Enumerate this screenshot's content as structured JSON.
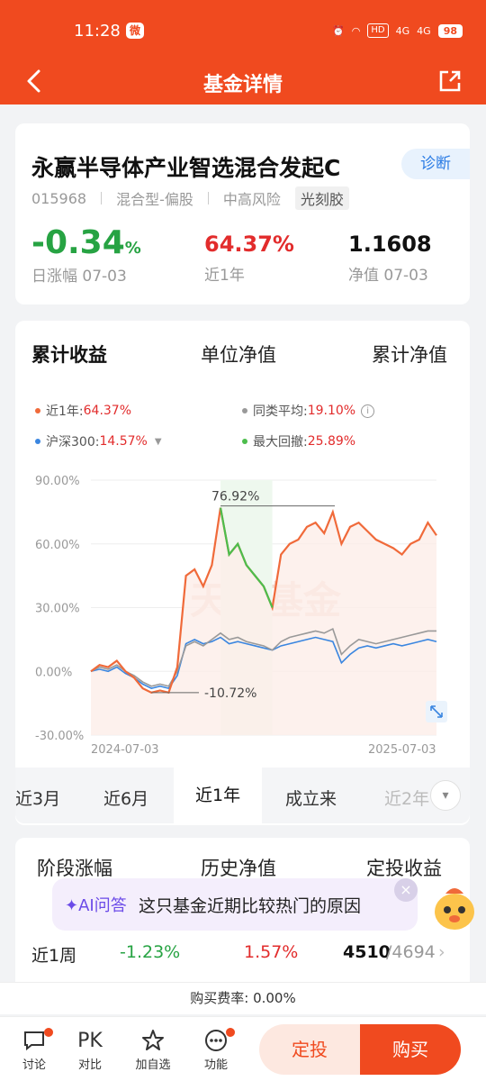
{
  "status": {
    "time": "11:28",
    "battery": "98",
    "hd": "HD",
    "net1": "4G",
    "net2": "4G"
  },
  "nav": {
    "title": "基金详情"
  },
  "fund": {
    "name": "永赢半导体产业智选混合发起C",
    "diagnose": "诊断",
    "code": "015968",
    "type": "混合型-偏股",
    "risk": "中高风险",
    "tag": "光刻胶",
    "daily_value": "-0.34",
    "daily_unit": "%",
    "daily_label": "日涨幅 07-03",
    "year_value": "64.37%",
    "year_label": "近1年",
    "nav_value": "1.1608",
    "nav_label": "净值 07-03"
  },
  "chart_tabs": [
    "累计收益",
    "单位净值",
    "累计净值"
  ],
  "legend": {
    "fund_label": "近1年:",
    "fund_value": "64.37%",
    "peer_label": "同类平均:",
    "peer_value": "19.10%",
    "index_label": "沪深300:",
    "index_value": "14.57%",
    "dd_label": "最大回撤:",
    "dd_value": "25.89%"
  },
  "chart_data": {
    "type": "line",
    "y_ticks": [
      "90.00%",
      "60.00%",
      "30.00%",
      "0.00%",
      "-30.00%"
    ],
    "ylim": [
      -30,
      90
    ],
    "x_start": "2024-07-03",
    "x_end": "2025-07-03",
    "watermark": "天天基金",
    "peak_label": "76.92%",
    "trough_label": "-10.72%",
    "series": [
      {
        "color": "#f06a3a",
        "values": [
          0,
          3,
          2,
          5,
          0,
          -3,
          -8,
          -10,
          -9,
          -10,
          2,
          45,
          48,
          40,
          50,
          77,
          55,
          60,
          50,
          45,
          40,
          30,
          55,
          60,
          62,
          68,
          70,
          65,
          75,
          60,
          68,
          70,
          66,
          62,
          60,
          58,
          55,
          60,
          62,
          70,
          64
        ]
      },
      {
        "color": "#999999",
        "values": [
          0,
          2,
          1,
          3,
          0,
          -2,
          -5,
          -7,
          -6,
          -7,
          0,
          12,
          14,
          12,
          15,
          18,
          15,
          16,
          14,
          13,
          12,
          10,
          14,
          16,
          17,
          18,
          19,
          18,
          20,
          8,
          12,
          15,
          14,
          13,
          14,
          15,
          16,
          17,
          18,
          19,
          19
        ]
      },
      {
        "color": "#3a86e0",
        "values": [
          0,
          1,
          0,
          2,
          -1,
          -3,
          -6,
          -8,
          -7,
          -8,
          -2,
          13,
          15,
          13,
          14,
          16,
          13,
          14,
          13,
          12,
          11,
          10,
          12,
          13,
          14,
          15,
          16,
          15,
          14,
          4,
          8,
          11,
          12,
          11,
          12,
          13,
          12,
          13,
          14,
          15,
          14
        ]
      }
    ]
  },
  "periods": [
    "近3月",
    "近6月",
    "近1年",
    "成立来",
    "近2年"
  ],
  "stage_tabs": [
    "阶段涨幅",
    "历史净值",
    "定投收益"
  ],
  "ai": {
    "badge": "AI问答",
    "question": "这只基金近期比较热门的原因"
  },
  "row": {
    "label": "近1周",
    "v1": "-1.23%",
    "v2": "1.57%",
    "rank_a": "4510",
    "rank_b": "/4694"
  },
  "fee": "购买费率: 0.00%",
  "bottom": {
    "discuss": "讨论",
    "pk": "PK",
    "compare": "对比",
    "watch": "加自选",
    "func": "功能",
    "fix": "定投",
    "buy": "购买"
  }
}
